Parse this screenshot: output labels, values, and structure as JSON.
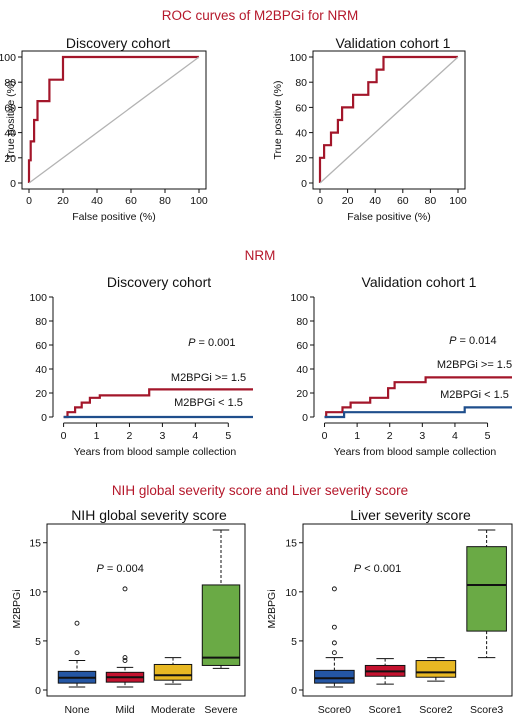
{
  "sections": {
    "roc_title": "ROC curves of M2BPGi for NRM",
    "nrm_title": "NRM",
    "box_title": "NIH global severity score and Liver severity score"
  },
  "colors": {
    "accent_red": "#b5182b",
    "curve_red": "#a3162a",
    "curve_blue": "#1f4e8c",
    "diagonal": "#b3b3b3",
    "box_blue": "#2456a4",
    "box_red": "#c4122f",
    "box_yellow": "#e8b823",
    "box_green": "#6aaa45"
  },
  "chart_data": [
    {
      "type": "line",
      "id": "roc_discovery",
      "title": "Discovery cohort",
      "xlabel": "False positive (%)",
      "ylabel": "True positive (%)",
      "xlim": [
        0,
        100
      ],
      "ylim": [
        0,
        100
      ],
      "xticks": [
        0,
        20,
        40,
        60,
        80,
        100
      ],
      "yticks": [
        0,
        20,
        40,
        60,
        80,
        100
      ],
      "series": [
        {
          "type": "step",
          "color": "#a3162a",
          "x": [
            0,
            0,
            1,
            1,
            3,
            3,
            5,
            5,
            12,
            12,
            20,
            20,
            28,
            28,
            100
          ],
          "y": [
            0,
            18,
            18,
            33,
            33,
            50,
            50,
            65,
            65,
            82,
            82,
            100,
            100,
            100,
            100
          ]
        },
        {
          "type": "diagonal",
          "color": "#b3b3b3",
          "x": [
            0,
            100
          ],
          "y": [
            0,
            100
          ]
        }
      ]
    },
    {
      "type": "line",
      "id": "roc_validation",
      "title": "Validation cohort 1",
      "xlabel": "False positive (%)",
      "ylabel": "True positive (%)",
      "xlim": [
        0,
        100
      ],
      "ylim": [
        0,
        100
      ],
      "xticks": [
        0,
        20,
        40,
        60,
        80,
        100
      ],
      "yticks": [
        0,
        20,
        40,
        60,
        80,
        100
      ],
      "series": [
        {
          "type": "step",
          "color": "#a3162a",
          "x": [
            0,
            0,
            3,
            3,
            8,
            8,
            13,
            13,
            16,
            16,
            24,
            24,
            35,
            35,
            41,
            41,
            46,
            46,
            53,
            53,
            100
          ],
          "y": [
            0,
            20,
            20,
            30,
            30,
            40,
            40,
            50,
            50,
            60,
            60,
            70,
            70,
            80,
            80,
            90,
            90,
            100,
            100,
            100,
            100
          ]
        },
        {
          "type": "diagonal",
          "color": "#b3b3b3",
          "x": [
            0,
            100
          ],
          "y": [
            0,
            100
          ]
        }
      ]
    },
    {
      "type": "line",
      "id": "nrm_discovery",
      "title": "Discovery cohort",
      "xlabel": "Years from blood sample collection",
      "ylabel": "",
      "xlim": [
        -0.2,
        5.75
      ],
      "ylim": [
        0,
        100
      ],
      "xticks": [
        0,
        1,
        2,
        3,
        4,
        5
      ],
      "yticks": [
        0,
        20,
        40,
        60,
        80,
        100
      ],
      "annotation": {
        "p_text": "P = 0.001",
        "p_x": 4.5,
        "p_y": 59
      },
      "series": [
        {
          "name": "M2BPGi >= 1.5",
          "type": "step",
          "color": "#a3162a",
          "label_x": 4.4,
          "label_y": 30,
          "x": [
            0,
            0.12,
            0.12,
            0.35,
            0.35,
            0.55,
            0.55,
            0.8,
            0.8,
            1.1,
            1.1,
            2.6,
            2.6,
            5.75
          ],
          "y": [
            0,
            0,
            4,
            4,
            8,
            8,
            12,
            12,
            16,
            16,
            18,
            18,
            23,
            23
          ]
        },
        {
          "name": "M2BPGi < 1.5",
          "type": "step",
          "color": "#1f4e8c",
          "label_x": 4.4,
          "label_y": 9,
          "x": [
            0,
            5.75
          ],
          "y": [
            0,
            0
          ]
        }
      ]
    },
    {
      "type": "line",
      "id": "nrm_validation",
      "title": "Validation cohort 1",
      "xlabel": "Years from blood sample collection",
      "ylabel": "",
      "xlim": [
        -0.2,
        5.75
      ],
      "ylim": [
        0,
        100
      ],
      "xticks": [
        0,
        1,
        2,
        3,
        4,
        5
      ],
      "yticks": [
        0,
        20,
        40,
        60,
        80,
        100
      ],
      "annotation": {
        "p_text": "P = 0.014",
        "p_x": 4.55,
        "p_y": 61
      },
      "series": [
        {
          "name": "M2BPGi >= 1.5",
          "type": "step",
          "color": "#a3162a",
          "label_x": 4.6,
          "label_y": 41,
          "x": [
            0,
            0.05,
            0.05,
            0.55,
            0.55,
            0.8,
            0.8,
            1.4,
            1.4,
            1.95,
            1.95,
            2.15,
            2.15,
            3.1,
            3.1,
            5.75
          ],
          "y": [
            0,
            0,
            4,
            4,
            8,
            8,
            12,
            12,
            16,
            16,
            24,
            24,
            29,
            29,
            33,
            33
          ]
        },
        {
          "name": "M2BPGi < 1.5",
          "type": "step",
          "color": "#1f4e8c",
          "label_x": 4.6,
          "label_y": 16,
          "x": [
            0,
            0.6,
            0.6,
            4.3,
            4.3,
            5.75
          ],
          "y": [
            0,
            0,
            4,
            4,
            8,
            8
          ]
        }
      ]
    },
    {
      "type": "box",
      "id": "box_nih",
      "title": "NIH global severity score",
      "xlabel": "",
      "ylabel": "M2BPGi",
      "ylim": [
        0,
        16.5
      ],
      "yticks": [
        0,
        5,
        10,
        15
      ],
      "annotation": {
        "p_text": "P = 0.004",
        "p_x": 1.9,
        "p_y": 12.0
      },
      "categories": [
        "None",
        "Mild",
        "Moderate",
        "Severe"
      ],
      "boxes": [
        {
          "whisker_low": 0.3,
          "q1": 0.7,
          "median": 1.25,
          "q3": 1.9,
          "whisker_high": 3.0,
          "outliers": [
            3.8,
            6.8
          ],
          "color": "#2456a4"
        },
        {
          "whisker_low": 0.3,
          "q1": 0.8,
          "median": 1.3,
          "q3": 1.8,
          "whisker_high": 2.3,
          "outliers": [
            3.0,
            3.3,
            10.3
          ],
          "color": "#c4122f"
        },
        {
          "whisker_low": 0.6,
          "q1": 1.0,
          "median": 1.5,
          "q3": 2.6,
          "whisker_high": 3.3,
          "outliers": [],
          "color": "#e8b823"
        },
        {
          "whisker_low": 2.2,
          "q1": 2.5,
          "median": 3.3,
          "q3": 10.7,
          "whisker_high": 16.3,
          "outliers": [],
          "color": "#6aaa45"
        }
      ]
    },
    {
      "type": "box",
      "id": "box_liver",
      "title": "Liver severity score",
      "xlabel": "",
      "ylabel": "M2BPGi",
      "ylim": [
        0,
        16.5
      ],
      "yticks": [
        0,
        5,
        10,
        15
      ],
      "annotation": {
        "p_text": "P < 0.001",
        "p_x": 1.85,
        "p_y": 12.0
      },
      "categories": [
        "Score0",
        "Score1",
        "Score2",
        "Score3"
      ],
      "boxes": [
        {
          "whisker_low": 0.3,
          "q1": 0.7,
          "median": 1.2,
          "q3": 2.0,
          "whisker_high": 3.3,
          "outliers": [
            3.8,
            4.8,
            6.4,
            10.3
          ],
          "color": "#2456a4"
        },
        {
          "whisker_low": 0.6,
          "q1": 1.4,
          "median": 1.9,
          "q3": 2.5,
          "whisker_high": 3.2,
          "outliers": [],
          "color": "#c4122f"
        },
        {
          "whisker_low": 0.9,
          "q1": 1.3,
          "median": 1.8,
          "q3": 3.0,
          "whisker_high": 3.3,
          "outliers": [],
          "color": "#e8b823"
        },
        {
          "whisker_low": 3.3,
          "q1": 6.0,
          "median": 10.7,
          "q3": 14.6,
          "whisker_high": 16.3,
          "outliers": [],
          "color": "#6aaa45"
        }
      ]
    }
  ]
}
